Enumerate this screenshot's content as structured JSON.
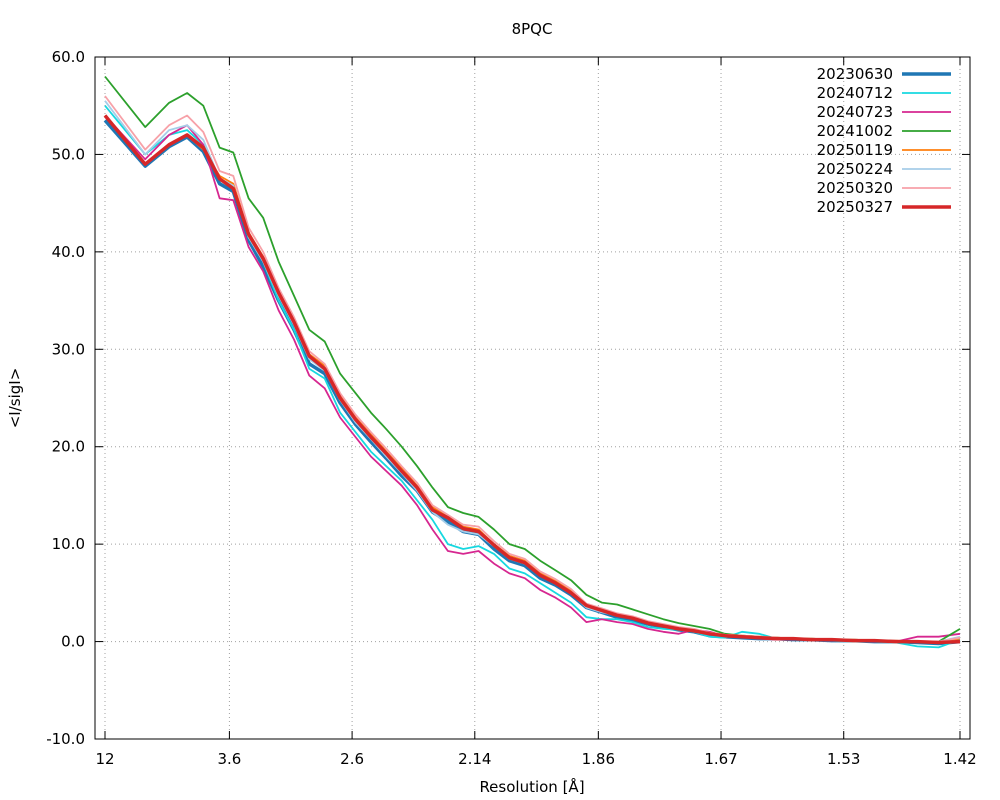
{
  "chart_data": {
    "type": "line",
    "title": "8PQC",
    "xlabel": "Resolution [Å]",
    "ylabel": "<I/sigI>",
    "ylim": [
      -10,
      60
    ],
    "y_ticks": [
      "-10.0",
      "0.0",
      "10.0",
      "20.0",
      "30.0",
      "40.0",
      "50.0",
      "60.0"
    ],
    "x_ticks": [
      {
        "label": "12",
        "at": 0
      },
      {
        "label": "3.6",
        "at": 0.1455
      },
      {
        "label": "2.6",
        "at": 0.289
      },
      {
        "label": "2.14",
        "at": 0.4325
      },
      {
        "label": "1.86",
        "at": 0.577
      },
      {
        "label": "1.67",
        "at": 0.7205
      },
      {
        "label": "1.53",
        "at": 0.864
      },
      {
        "label": "1.42",
        "at": 1.0
      }
    ],
    "grid": true,
    "legend_position": "top-right",
    "x_note": "x values are bin positions on a 0-1 inverse-resolution scale matching the tick positions above",
    "x": [
      0.0,
      0.047,
      0.075,
      0.096,
      0.115,
      0.134,
      0.15,
      0.168,
      0.185,
      0.203,
      0.221,
      0.239,
      0.257,
      0.275,
      0.293,
      0.311,
      0.329,
      0.347,
      0.365,
      0.383,
      0.401,
      0.419,
      0.437,
      0.455,
      0.473,
      0.491,
      0.509,
      0.527,
      0.545,
      0.563,
      0.581,
      0.599,
      0.617,
      0.635,
      0.653,
      0.671,
      0.689,
      0.707,
      0.725,
      0.745,
      0.765,
      0.785,
      0.805,
      0.825,
      0.85,
      0.875,
      0.9,
      0.925,
      0.95,
      0.975,
      1.0
    ],
    "series": [
      {
        "name": "20230630",
        "color": "#1f77b4",
        "width": 3.5,
        "values": [
          53.5,
          48.8,
          50.8,
          51.8,
          50.3,
          47.0,
          46.2,
          41.2,
          38.5,
          35.0,
          32.0,
          28.5,
          27.5,
          24.5,
          22.3,
          20.5,
          18.8,
          17.0,
          15.5,
          13.3,
          12.3,
          11.3,
          11.0,
          9.5,
          8.3,
          7.8,
          6.5,
          5.8,
          4.8,
          3.5,
          3.0,
          2.5,
          2.2,
          1.8,
          1.5,
          1.2,
          1.0,
          0.6,
          0.5,
          0.4,
          0.3,
          0.3,
          0.2,
          0.2,
          0.1,
          0.1,
          0.0,
          0.0,
          -0.1,
          -0.2,
          0.0
        ]
      },
      {
        "name": "20240712",
        "color": "#17d8e0",
        "width": 1.8,
        "values": [
          55.0,
          50.0,
          52.0,
          52.5,
          51.0,
          47.5,
          46.8,
          41.5,
          39.0,
          35.0,
          32.0,
          28.0,
          27.0,
          23.5,
          21.5,
          19.5,
          18.0,
          16.5,
          14.5,
          12.5,
          10.0,
          9.5,
          9.8,
          9.0,
          7.5,
          7.0,
          6.0,
          5.0,
          4.0,
          2.5,
          2.3,
          2.3,
          2.0,
          1.5,
          1.3,
          1.2,
          1.0,
          0.5,
          0.4,
          1.0,
          0.8,
          0.3,
          0.2,
          0.2,
          0.1,
          0.0,
          0.0,
          -0.1,
          -0.5,
          -0.6,
          0.2
        ]
      },
      {
        "name": "20240723",
        "color": "#d62790",
        "width": 1.8,
        "values": [
          54.0,
          49.5,
          52.0,
          53.0,
          51.0,
          45.5,
          45.3,
          40.5,
          38.0,
          34.0,
          31.0,
          27.3,
          26.0,
          23.0,
          21.0,
          19.0,
          17.5,
          16.0,
          14.0,
          11.5,
          9.3,
          9.0,
          9.3,
          8.0,
          7.0,
          6.5,
          5.3,
          4.5,
          3.5,
          2.0,
          2.3,
          2.0,
          1.8,
          1.3,
          1.0,
          0.8,
          1.2,
          1.0,
          0.6,
          0.5,
          0.3,
          0.2,
          0.2,
          0.2,
          0.1,
          0.1,
          0.0,
          0.0,
          0.5,
          0.5,
          0.8
        ]
      },
      {
        "name": "20241002",
        "color": "#2ca02c",
        "width": 1.8,
        "values": [
          58.0,
          52.8,
          55.3,
          56.3,
          55.0,
          50.7,
          50.2,
          45.5,
          43.5,
          39.0,
          35.5,
          32.0,
          30.8,
          27.5,
          25.5,
          23.5,
          21.8,
          20.0,
          18.0,
          15.8,
          13.8,
          13.2,
          12.8,
          11.5,
          10.0,
          9.5,
          8.3,
          7.3,
          6.3,
          4.8,
          4.0,
          3.8,
          3.3,
          2.8,
          2.3,
          1.9,
          1.6,
          1.3,
          0.8,
          0.6,
          0.5,
          0.4,
          0.3,
          0.3,
          0.2,
          0.2,
          0.1,
          0.0,
          0.0,
          0.0,
          1.3
        ]
      },
      {
        "name": "20250119",
        "color": "#ff7f0e",
        "width": 1.8,
        "values": [
          54.0,
          49.0,
          51.0,
          52.0,
          50.5,
          47.8,
          47.0,
          42.0,
          39.5,
          36.0,
          33.0,
          29.5,
          28.3,
          25.3,
          23.0,
          21.3,
          19.5,
          17.8,
          16.0,
          13.8,
          12.8,
          11.8,
          11.5,
          10.0,
          8.8,
          8.3,
          7.0,
          6.2,
          5.2,
          3.8,
          3.3,
          2.8,
          2.5,
          2.0,
          1.7,
          1.4,
          1.2,
          0.9,
          0.7,
          0.6,
          0.5,
          0.4,
          0.3,
          0.3,
          0.2,
          0.2,
          0.1,
          0.1,
          0.0,
          0.0,
          0.3
        ]
      },
      {
        "name": "20250224",
        "color": "#a6cde8",
        "width": 1.8,
        "values": [
          55.5,
          50.0,
          52.5,
          53.0,
          51.5,
          47.5,
          46.8,
          41.5,
          39.0,
          35.5,
          32.5,
          29.0,
          27.8,
          24.8,
          22.5,
          20.8,
          19.0,
          17.3,
          15.5,
          13.3,
          12.0,
          11.3,
          11.0,
          9.8,
          8.5,
          8.0,
          6.8,
          6.0,
          5.0,
          3.5,
          3.0,
          2.7,
          2.4,
          1.9,
          1.6,
          1.3,
          1.1,
          0.8,
          0.6,
          0.5,
          0.4,
          0.3,
          0.3,
          0.2,
          0.2,
          0.1,
          0.1,
          0.0,
          0.0,
          0.0,
          0.5
        ]
      },
      {
        "name": "20250320",
        "color": "#f7a1a8",
        "width": 1.8,
        "values": [
          56.0,
          50.5,
          53.0,
          54.0,
          52.3,
          48.3,
          47.8,
          42.5,
          40.0,
          36.3,
          33.3,
          29.8,
          28.5,
          25.5,
          23.3,
          21.5,
          19.8,
          18.0,
          16.3,
          14.0,
          13.0,
          12.0,
          11.8,
          10.3,
          9.0,
          8.5,
          7.2,
          6.4,
          5.4,
          3.9,
          3.4,
          2.9,
          2.6,
          2.1,
          1.8,
          1.5,
          1.3,
          0.9,
          0.7,
          0.6,
          0.5,
          0.4,
          0.3,
          0.3,
          0.2,
          0.2,
          0.1,
          0.1,
          0.0,
          0.0,
          0.4
        ]
      },
      {
        "name": "20250327",
        "color": "#d62728",
        "width": 3.5,
        "values": [
          54.0,
          49.0,
          51.0,
          52.0,
          50.7,
          47.5,
          46.5,
          41.8,
          39.3,
          35.8,
          32.8,
          29.3,
          28.0,
          25.0,
          22.8,
          21.0,
          19.3,
          17.5,
          15.8,
          13.5,
          12.7,
          11.6,
          11.3,
          9.9,
          8.6,
          8.1,
          6.8,
          6.0,
          5.0,
          3.7,
          3.2,
          2.7,
          2.4,
          1.9,
          1.6,
          1.3,
          1.1,
          0.8,
          0.6,
          0.5,
          0.4,
          0.3,
          0.3,
          0.2,
          0.2,
          0.1,
          0.1,
          0.0,
          0.0,
          -0.1,
          0.0
        ]
      }
    ]
  }
}
